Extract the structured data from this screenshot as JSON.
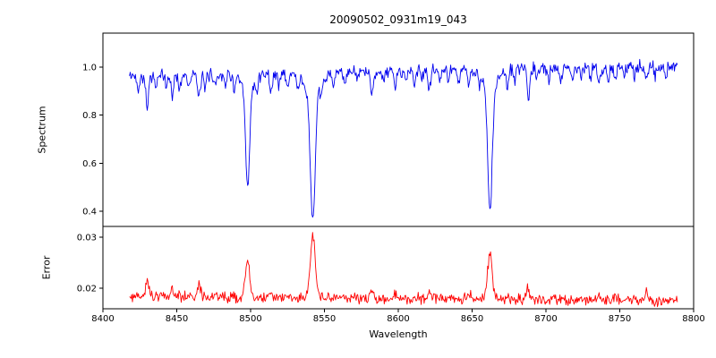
{
  "chart_data": {
    "type": "line",
    "title": "20090502_0931m19_043",
    "xlabel": "Wavelength",
    "xlim": [
      8400,
      8800
    ],
    "xticks": [
      8400,
      8450,
      8500,
      8550,
      8600,
      8650,
      8700,
      8750,
      8800
    ],
    "xtick_labels": [
      "8400",
      "8450",
      "8500",
      "8550",
      "8600",
      "8650",
      "8700",
      "8750",
      "8800"
    ],
    "x_range_data": [
      8418,
      8789
    ],
    "sample_step": 0.5,
    "noise_seed": 42,
    "grid": false,
    "legend": "none",
    "panels": [
      {
        "ylabel": "Spectrum",
        "color": "#0000ee",
        "ylim": [
          0.336,
          1.142
        ],
        "yticks": [
          0.4,
          0.6,
          0.8,
          1.0
        ],
        "ytick_labels": [
          "0.4",
          "0.6",
          "0.8",
          "1.0"
        ],
        "continuum_start": 0.962,
        "continuum_end": 1.005,
        "noise_amplitude": 0.032,
        "major_lines": [
          {
            "center": 8498.0,
            "depth": 0.4,
            "width": 1.3,
            "wing_depth": 0.08,
            "wing_width": 4.0,
            "min_value": 0.52
          },
          {
            "center": 8542.1,
            "depth": 0.52,
            "width": 1.6,
            "wing_depth": 0.1,
            "wing_width": 5.0,
            "min_value": 0.36
          },
          {
            "center": 8662.1,
            "depth": 0.5,
            "width": 1.5,
            "wing_depth": 0.09,
            "wing_width": 4.5,
            "min_value": 0.38
          }
        ],
        "minor_lines": [
          [
            8424,
            0.05,
            0.8
          ],
          [
            8430,
            0.13,
            0.9
          ],
          [
            8436,
            0.06,
            0.7
          ],
          [
            8443,
            0.05,
            0.7
          ],
          [
            8447,
            0.09,
            0.8
          ],
          [
            8452,
            0.06,
            0.7
          ],
          [
            8458,
            0.04,
            0.7
          ],
          [
            8465,
            0.1,
            0.9
          ],
          [
            8469,
            0.07,
            0.7
          ],
          [
            8476,
            0.05,
            0.7
          ],
          [
            8483,
            0.04,
            0.7
          ],
          [
            8489,
            0.06,
            0.8
          ],
          [
            8504,
            0.05,
            0.7
          ],
          [
            8514,
            0.08,
            0.8
          ],
          [
            8519,
            0.05,
            0.7
          ],
          [
            8525,
            0.06,
            0.8
          ],
          [
            8532,
            0.05,
            0.7
          ],
          [
            8548,
            0.05,
            0.7
          ],
          [
            8556,
            0.06,
            0.8
          ],
          [
            8564,
            0.04,
            0.7
          ],
          [
            8572,
            0.04,
            0.7
          ],
          [
            8582,
            0.1,
            0.9
          ],
          [
            8590,
            0.05,
            0.7
          ],
          [
            8598,
            0.07,
            0.8
          ],
          [
            8605,
            0.04,
            0.7
          ],
          [
            8611,
            0.05,
            0.7
          ],
          [
            8616,
            0.04,
            0.7
          ],
          [
            8621,
            0.08,
            0.8
          ],
          [
            8628,
            0.04,
            0.7
          ],
          [
            8634,
            0.05,
            0.7
          ],
          [
            8641,
            0.04,
            0.7
          ],
          [
            8648,
            0.07,
            0.8
          ],
          [
            8655,
            0.04,
            0.7
          ],
          [
            8674,
            0.07,
            0.8
          ],
          [
            8679,
            0.05,
            0.7
          ],
          [
            8688,
            0.13,
            0.9
          ],
          [
            8694,
            0.05,
            0.7
          ],
          [
            8702,
            0.04,
            0.7
          ],
          [
            8710,
            0.05,
            0.7
          ],
          [
            8718,
            0.04,
            0.7
          ],
          [
            8724,
            0.05,
            0.7
          ],
          [
            8730,
            0.04,
            0.7
          ],
          [
            8736,
            0.07,
            0.8
          ],
          [
            8742,
            0.05,
            0.7
          ],
          [
            8747,
            0.06,
            0.7
          ],
          [
            8753,
            0.04,
            0.7
          ],
          [
            8760,
            0.05,
            0.7
          ],
          [
            8768,
            0.06,
            0.8
          ],
          [
            8774,
            0.04,
            0.7
          ],
          [
            8781,
            0.05,
            0.7
          ]
        ]
      },
      {
        "ylabel": "Error",
        "color": "#ff0000",
        "ylim": [
          0.016,
          0.0321
        ],
        "yticks": [
          0.02,
          0.03
        ],
        "ytick_labels": [
          "0.02",
          "0.03"
        ],
        "baseline_start": 0.0184,
        "baseline_end": 0.0176,
        "noise_amplitude": 0.0013,
        "peaks": [
          {
            "center": 8498.0,
            "height": 0.0072,
            "width": 1.4,
            "max_value": 0.026
          },
          {
            "center": 8542.1,
            "height": 0.012,
            "width": 1.7,
            "max_value": 0.0305
          },
          {
            "center": 8662.1,
            "height": 0.0094,
            "width": 1.5,
            "max_value": 0.0275
          }
        ],
        "minor_peaks": [
          [
            8430,
            0.0028,
            1.2
          ],
          [
            8447,
            0.0012,
            1.0
          ],
          [
            8465,
            0.0022,
            1.2
          ],
          [
            8514,
            0.001,
            1.0
          ],
          [
            8582,
            0.0014,
            1.1
          ],
          [
            8598,
            0.001,
            1.0
          ],
          [
            8621,
            0.0012,
            1.0
          ],
          [
            8648,
            0.001,
            1.0
          ],
          [
            8688,
            0.002,
            1.2
          ],
          [
            8736,
            0.001,
            1.0
          ],
          [
            8747,
            0.0012,
            1.0
          ],
          [
            8768,
            0.0013,
            1.0
          ]
        ]
      }
    ]
  },
  "colors": {
    "spectrum_line": "#0000ee",
    "error_line": "#ff0000",
    "axis": "#000000",
    "background": "#ffffff"
  }
}
